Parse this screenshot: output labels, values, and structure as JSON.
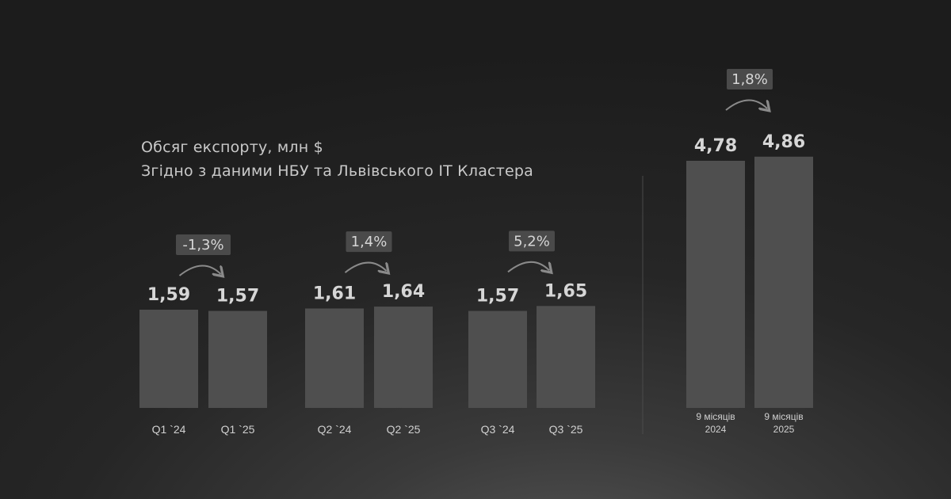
{
  "chart_data": {
    "type": "bar",
    "title": "Обсяг експорту, млн $",
    "subtitle": "Згідно з даними НБУ та Львівського IT Кластера",
    "groups": [
      {
        "bars": [
          {
            "label": "Q1 `24",
            "value": 1.59,
            "value_label": "1,59"
          },
          {
            "label": "Q1 `25",
            "value": 1.57,
            "value_label": "1,57"
          }
        ],
        "change": "-1,3%"
      },
      {
        "bars": [
          {
            "label": "Q2 `24",
            "value": 1.61,
            "value_label": "1,61"
          },
          {
            "label": "Q2 `25",
            "value": 1.64,
            "value_label": "1,64"
          }
        ],
        "change": "1,4%"
      },
      {
        "bars": [
          {
            "label": "Q3 `24",
            "value": 1.57,
            "value_label": "1,57"
          },
          {
            "label": "Q3 `25",
            "value": 1.65,
            "value_label": "1,65"
          }
        ],
        "change": "5,2%"
      },
      {
        "bars": [
          {
            "label": [
              "9 місяців",
              "2024"
            ],
            "value": 4.78,
            "value_label": "4,78"
          },
          {
            "label": [
              "9 місяців",
              "2025"
            ],
            "value": 4.86,
            "value_label": "4,86"
          }
        ],
        "change": "1,8%"
      }
    ],
    "colors": {
      "bar": "#4f4f4f",
      "text": "#d6d6d6",
      "badge": "#4a4a4a"
    }
  }
}
